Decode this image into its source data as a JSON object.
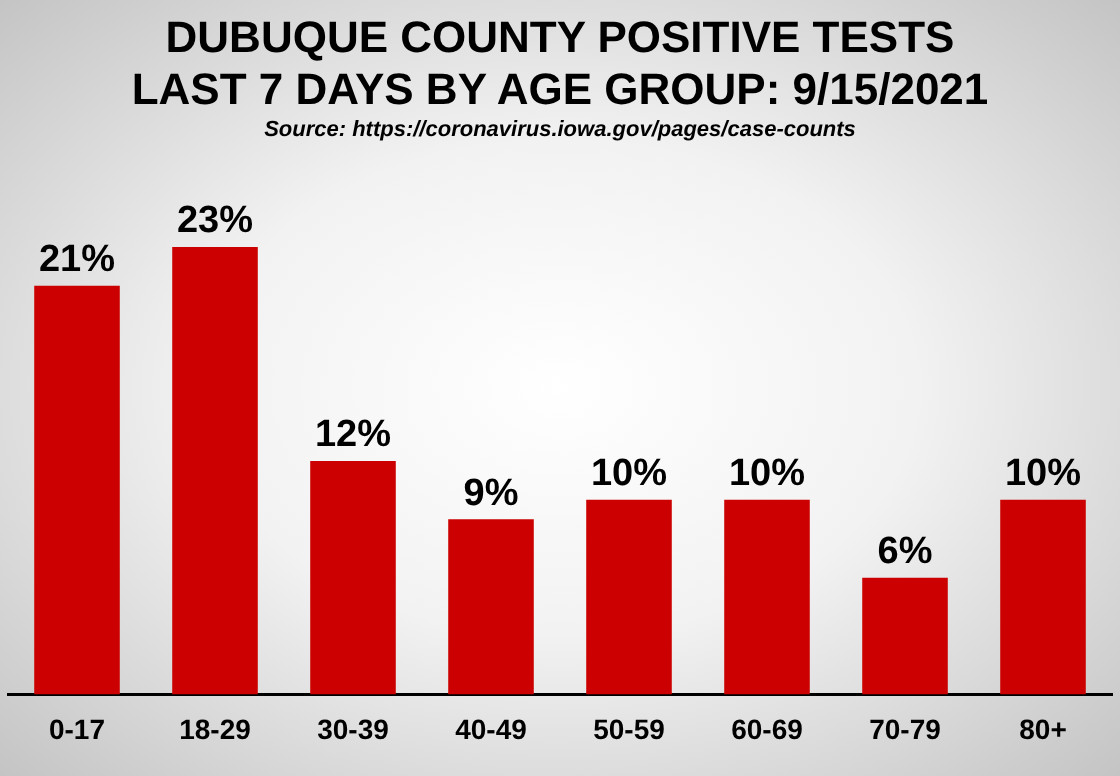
{
  "chart_data": {
    "type": "bar",
    "title": "DUBUQUE COUNTY POSITIVE TESTS\nLAST 7 DAYS BY AGE GROUP: 9/15/2021",
    "annotations": [
      "Source: https://coronavirus.iowa.gov/pages/case-counts"
    ],
    "categories": [
      "0-17",
      "18-29",
      "30-39",
      "40-49",
      "50-59",
      "60-69",
      "70-79",
      "80+"
    ],
    "values": [
      21,
      23,
      12,
      9,
      10,
      10,
      6,
      10
    ],
    "value_labels": [
      "21%",
      "23%",
      "12%",
      "9%",
      "10%",
      "10%",
      "6%",
      "10%"
    ],
    "color": "#cc0000",
    "grid": false,
    "legend": false,
    "tick_labels": "x"
  }
}
